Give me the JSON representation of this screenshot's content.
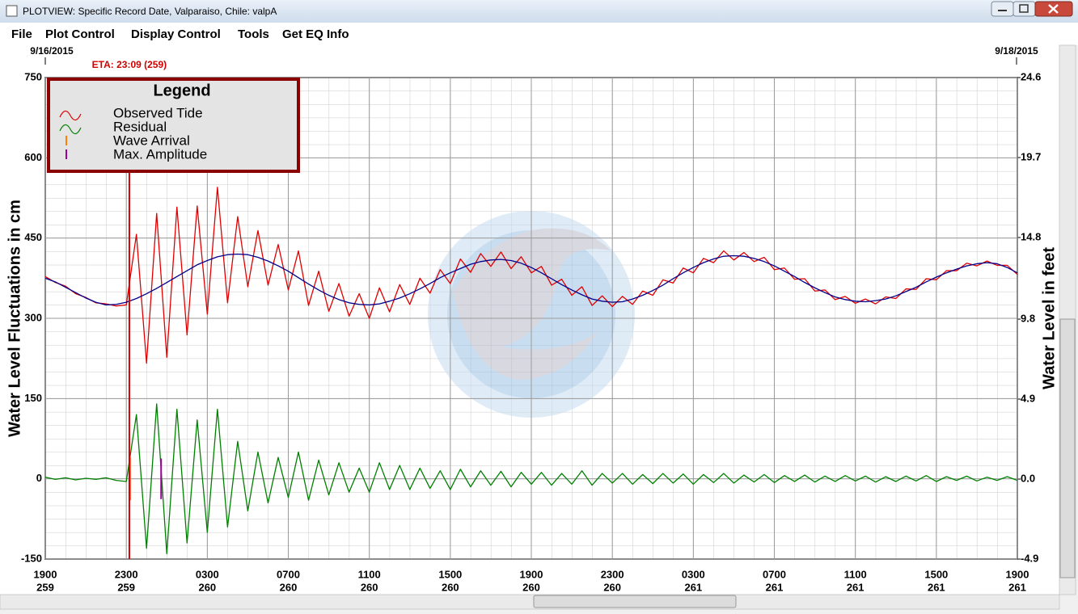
{
  "window": {
    "title": "PLOTVIEW: Specific Record Date, Valparaiso, Chile: valpA"
  },
  "menu": [
    "File",
    "Plot Control",
    "Display Control",
    "Tools",
    "Get EQ Info"
  ],
  "chart_data": {
    "type": "line",
    "start_date": "9/16/2015",
    "end_date": "9/18/2015",
    "ylabel": "Water Level Fluctuations in cm",
    "y2label": "Water Level in feet",
    "legend_title": "Legend",
    "legend": "upper left",
    "grid": true,
    "eta": {
      "label": "ETA: 23:09 (259)",
      "x": 4.15,
      "color": "#d00000"
    },
    "xlim": [
      0,
      48
    ],
    "xticks": [
      {
        "value": 0,
        "label": "1900"
      },
      {
        "value": 4,
        "label": "2300"
      },
      {
        "value": 8,
        "label": "0300"
      },
      {
        "value": 12,
        "label": "0700"
      },
      {
        "value": 16,
        "label": "1100"
      },
      {
        "value": 20,
        "label": "1500"
      },
      {
        "value": 24,
        "label": "1900"
      },
      {
        "value": 28,
        "label": "2300"
      },
      {
        "value": 32,
        "label": "0300"
      },
      {
        "value": 36,
        "label": "0700"
      },
      {
        "value": 40,
        "label": "1100"
      },
      {
        "value": 44,
        "label": "1500"
      },
      {
        "value": 48,
        "label": "1900"
      }
    ],
    "xtick_days": [
      "259",
      "259",
      "260",
      "260",
      "260",
      "260",
      "260",
      "260",
      "261",
      "261",
      "261",
      "261",
      "261"
    ],
    "ylim": [
      -150,
      750
    ],
    "yticks": [
      -150,
      0,
      150,
      300,
      450,
      600,
      750
    ],
    "y2lim": [
      -4.9,
      24.6
    ],
    "y2ticks": [
      -4.9,
      {
        "value": 0,
        "label": "0.0"
      },
      4.9,
      9.8,
      14.8,
      19.7,
      24.6
    ],
    "x": [
      0,
      0.5,
      1,
      1.5,
      2,
      2.5,
      3,
      3.5,
      4,
      4.5,
      5,
      5.5,
      6,
      6.5,
      7,
      7.5,
      8,
      8.5,
      9,
      9.5,
      10,
      10.5,
      11,
      11.5,
      12,
      12.5,
      13,
      13.5,
      14,
      14.5,
      15,
      15.5,
      16,
      16.5,
      17,
      17.5,
      18,
      18.5,
      19,
      19.5,
      20,
      20.5,
      21,
      21.5,
      22,
      22.5,
      23,
      23.5,
      24,
      24.5,
      25,
      25.5,
      26,
      26.5,
      27,
      27.5,
      28,
      28.5,
      29,
      29.5,
      30,
      30.5,
      31,
      31.5,
      32,
      32.5,
      33,
      33.5,
      34,
      34.5,
      35,
      35.5,
      36,
      36.5,
      37,
      37.5,
      38,
      38.5,
      39,
      39.5,
      40,
      40.5,
      41,
      41.5,
      42,
      42.5,
      43,
      43.5,
      44,
      44.5,
      45,
      45.5,
      46,
      46.5,
      47,
      47.5,
      48
    ],
    "series": [
      {
        "name": "Observed Tide",
        "color": "#e00000",
        "values": [
          378,
          367,
          360,
          346,
          339,
          329,
          327,
          323,
          325,
          457,
          216,
          496,
          227,
          508,
          269,
          510,
          308,
          545,
          329,
          490,
          359,
          464,
          362,
          438,
          353,
          426,
          324,
          388,
          313,
          365,
          304,
          346,
          300,
          357,
          312,
          363,
          326,
          375,
          347,
          391,
          365,
          411,
          386,
          421,
          397,
          424,
          393,
          415,
          385,
          397,
          362,
          373,
          343,
          359,
          324,
          342,
          322,
          341,
          326,
          351,
          343,
          372,
          366,
          394,
          385,
          412,
          404,
          426,
          409,
          423,
          406,
          414,
          391,
          394,
          373,
          374,
          351,
          353,
          335,
          341,
          328,
          336,
          327,
          340,
          337,
          355,
          354,
          374,
          372,
          389,
          389,
          403,
          398,
          407,
          399,
          399,
          382
        ]
      },
      {
        "name": "Residual",
        "color": "#008000",
        "values": [
          3,
          -1,
          2,
          -2,
          1,
          -1,
          2,
          -3,
          -5,
          120,
          -130,
          140,
          -140,
          130,
          -120,
          110,
          -100,
          130,
          -90,
          70,
          -60,
          50,
          -45,
          40,
          -35,
          50,
          -40,
          35,
          -30,
          30,
          -25,
          20,
          -25,
          30,
          -20,
          25,
          -20,
          20,
          -18,
          15,
          -20,
          18,
          -15,
          15,
          -12,
          14,
          -15,
          12,
          -10,
          12,
          -12,
          10,
          -10,
          15,
          -12,
          10,
          -8,
          10,
          -10,
          8,
          -9,
          10,
          -8,
          9,
          -10,
          8,
          -7,
          10,
          -8,
          7,
          -6,
          8,
          -7,
          6,
          -5,
          7,
          -6,
          5,
          -5,
          6,
          -4,
          5,
          -6,
          4,
          -5,
          5,
          -4,
          6,
          -5,
          4,
          -3,
          5,
          -4,
          3,
          -3,
          4,
          -3
        ]
      },
      {
        "color": "#00008b",
        "values": [
          375,
          368,
          358,
          348,
          338,
          330,
          325,
          326,
          330,
          337,
          346,
          356,
          367,
          378,
          389,
          400,
          408,
          415,
          419,
          420,
          419,
          414,
          407,
          398,
          388,
          376,
          364,
          353,
          343,
          335,
          329,
          326,
          325,
          327,
          332,
          338,
          346,
          355,
          365,
          376,
          385,
          393,
          401,
          406,
          409,
          410,
          408,
          403,
          395,
          385,
          374,
          363,
          353,
          344,
          336,
          332,
          330,
          331,
          336,
          343,
          352,
          362,
          374,
          385,
          395,
          404,
          411,
          416,
          417,
          416,
          412,
          406,
          398,
          388,
          378,
          367,
          357,
          348,
          340,
          335,
          332,
          331,
          333,
          336,
          342,
          350,
          358,
          368,
          377,
          385,
          392,
          398,
          402,
          404,
          402,
          395,
          385
        ]
      }
    ],
    "markers": [
      {
        "name": "Wave Arrival",
        "color": "#ff8000",
        "x": 4.2,
        "values": [
          40,
          -40
        ]
      },
      {
        "name": "Max. Amplitude",
        "color": "#a000a0",
        "x": 5.72,
        "values": [
          38,
          -38
        ]
      }
    ]
  }
}
